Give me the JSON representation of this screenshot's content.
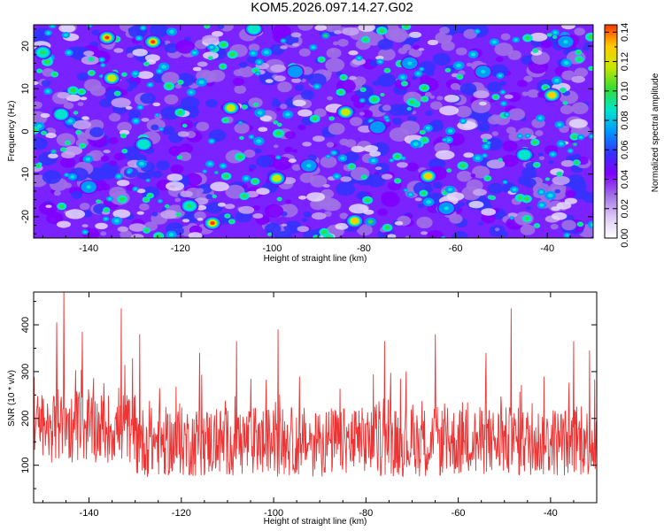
{
  "title": "KOM5.2026.097.14.27.G02",
  "chart_data": [
    {
      "type": "heatmap",
      "xlabel": "Height of straight line (km)",
      "ylabel": "Frequency (Hz)",
      "xlim": [
        -152,
        -30
      ],
      "ylim": [
        -25,
        25
      ],
      "xticks": [
        -140,
        -120,
        -100,
        -80,
        -60,
        -40
      ],
      "yticks": [
        -20,
        -10,
        0,
        10,
        20
      ],
      "colorbar": {
        "label": "Normalized spectral amplitude",
        "range": [
          0,
          0.145
        ],
        "ticks": [
          0.0,
          0.02,
          0.04,
          0.06,
          0.08,
          0.1,
          0.12,
          0.14
        ],
        "tick_labels": [
          "0.00",
          "0.02",
          "0.04",
          "0.06",
          "0.08",
          "0.10",
          "0.12",
          "0.14"
        ],
        "colors": [
          "#ffffff",
          "#dcc8f5",
          "#a070e6",
          "#8000ff",
          "#3333ff",
          "#0099ff",
          "#00e5cc",
          "#33dd33",
          "#c8e600",
          "#ffcc00",
          "#ff3300"
        ]
      },
      "peaks": [
        {
          "x": -136,
          "y": 22,
          "value": 0.14
        },
        {
          "x": -126,
          "y": 21,
          "value": 0.14
        },
        {
          "x": -135,
          "y": 12.5,
          "value": 0.11
        },
        {
          "x": -113,
          "y": -21.5,
          "value": 0.14
        },
        {
          "x": -118,
          "y": -17.5,
          "value": 0.1
        },
        {
          "x": -109,
          "y": 5.5,
          "value": 0.11
        },
        {
          "x": -99,
          "y": -11,
          "value": 0.12
        },
        {
          "x": -82,
          "y": -21,
          "value": 0.13
        },
        {
          "x": -84,
          "y": 4.5,
          "value": 0.11
        },
        {
          "x": -66,
          "y": -10.5,
          "value": 0.13
        },
        {
          "x": -39,
          "y": 8.5,
          "value": 0.13
        },
        {
          "x": -45,
          "y": -5.5,
          "value": 0.09
        },
        {
          "x": -146,
          "y": 4,
          "value": 0.09
        },
        {
          "x": -150,
          "y": 18.5,
          "value": 0.1
        },
        {
          "x": -128,
          "y": -3,
          "value": 0.09
        },
        {
          "x": -104,
          "y": 24,
          "value": 0.09
        },
        {
          "x": -70,
          "y": 16,
          "value": 0.08
        },
        {
          "x": -54,
          "y": 14,
          "value": 0.08
        },
        {
          "x": -92,
          "y": -8,
          "value": 0.08
        },
        {
          "x": -62,
          "y": -18,
          "value": 0.08
        },
        {
          "x": -140,
          "y": -13,
          "value": 0.08
        },
        {
          "x": -36,
          "y": 21,
          "value": 0.08
        },
        {
          "x": -95,
          "y": 14,
          "value": 0.07
        },
        {
          "x": -77,
          "y": 1,
          "value": 0.07
        }
      ]
    },
    {
      "type": "line",
      "xlabel": "Height of straight line (km)",
      "ylabel": "SNR (10 * v/v)",
      "xlim": [
        -152,
        -30
      ],
      "ylim": [
        20,
        470
      ],
      "xticks": [
        -140,
        -120,
        -100,
        -80,
        -60,
        -40
      ],
      "yticks": [
        100,
        200,
        300,
        400
      ],
      "series": [
        {
          "name": "SNR",
          "color": "#ee3333",
          "baseline": 150,
          "noise": 75,
          "samples": 1100,
          "spikes": [
            {
              "x": -145.5,
              "y": 470
            },
            {
              "x": -147,
              "y": 405
            },
            {
              "x": -141.5,
              "y": 385
            },
            {
              "x": -133,
              "y": 435
            },
            {
              "x": -129,
              "y": 380
            },
            {
              "x": -116,
              "y": 340
            },
            {
              "x": -108,
              "y": 365
            },
            {
              "x": -99,
              "y": 390
            },
            {
              "x": -76,
              "y": 365
            },
            {
              "x": -65,
              "y": 380
            },
            {
              "x": -54,
              "y": 340
            },
            {
              "x": -48.5,
              "y": 435
            },
            {
              "x": -35,
              "y": 365
            },
            {
              "x": -31.5,
              "y": 345
            }
          ]
        }
      ]
    }
  ]
}
